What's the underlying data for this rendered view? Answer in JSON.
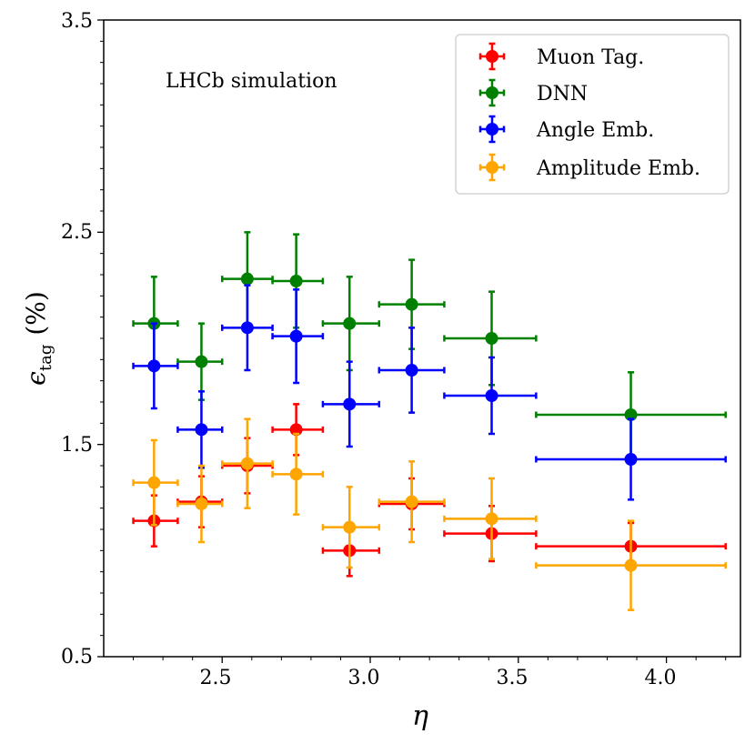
{
  "chart_data": {
    "type": "scatter",
    "title": "",
    "annotation": "LHCb simulation",
    "xlabel": "η",
    "ylabel_main": "ϵ",
    "ylabel_sub": "tag",
    "ylabel_unit": "(%)",
    "xlim": [
      2.1,
      4.25
    ],
    "ylim": [
      0.5,
      3.5
    ],
    "x_ticks": [
      2.5,
      3.0,
      3.5,
      4.0
    ],
    "x_tick_labels": [
      "2.5",
      "3.0",
      "3.5",
      "4.0"
    ],
    "y_ticks": [
      0.5,
      1.5,
      2.5,
      3.5
    ],
    "y_tick_labels": [
      "0.5",
      "1.5",
      "2.5",
      "3.5"
    ],
    "legend_position": "top-right",
    "bins": [
      {
        "x": 2.27,
        "xlo": 2.2,
        "xhi": 2.35
      },
      {
        "x": 2.43,
        "xlo": 2.35,
        "xhi": 2.5
      },
      {
        "x": 2.585,
        "xlo": 2.5,
        "xhi": 2.67
      },
      {
        "x": 2.75,
        "xlo": 2.67,
        "xhi": 2.84
      },
      {
        "x": 2.93,
        "xlo": 2.84,
        "xhi": 3.03
      },
      {
        "x": 3.14,
        "xlo": 3.03,
        "xhi": 3.25
      },
      {
        "x": 3.41,
        "xlo": 3.25,
        "xhi": 3.56
      },
      {
        "x": 3.88,
        "xlo": 3.56,
        "xhi": 4.2
      }
    ],
    "series": [
      {
        "name": "Muon Tag.",
        "color": "#ff0000",
        "values": [
          1.14,
          1.23,
          1.4,
          1.57,
          1.0,
          1.22,
          1.08,
          1.02
        ],
        "yerr": [
          0.12,
          0.12,
          0.13,
          0.12,
          0.12,
          0.12,
          0.13,
          0.11
        ]
      },
      {
        "name": "DNN",
        "color": "#008000",
        "values": [
          2.07,
          1.89,
          2.28,
          2.27,
          2.07,
          2.16,
          2.0,
          1.64
        ],
        "yerr": [
          0.22,
          0.18,
          0.22,
          0.22,
          0.22,
          0.21,
          0.22,
          0.2
        ]
      },
      {
        "name": "Angle Emb.",
        "color": "#0000ff",
        "values": [
          1.87,
          1.57,
          2.05,
          2.01,
          1.69,
          1.85,
          1.73,
          1.43
        ],
        "yerr": [
          0.2,
          0.18,
          0.2,
          0.22,
          0.2,
          0.2,
          0.18,
          0.19
        ]
      },
      {
        "name": "Amplitude Emb.",
        "color": "#ffa500",
        "values": [
          1.32,
          1.22,
          1.41,
          1.36,
          1.11,
          1.23,
          1.15,
          0.93
        ],
        "yerr": [
          0.2,
          0.18,
          0.21,
          0.19,
          0.19,
          0.19,
          0.19,
          0.21
        ]
      }
    ]
  }
}
